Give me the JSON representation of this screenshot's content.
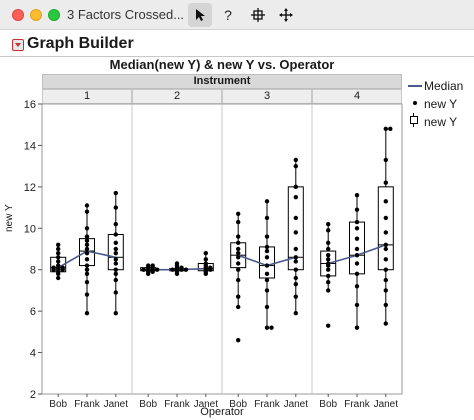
{
  "window": {
    "title": "3 Factors Crossed..."
  },
  "toolbar": {
    "pointer_icon": "pointer-arrow-icon",
    "help_label": "?",
    "crosshair_icon": "crosshair-icon",
    "move_icon": "move-icon"
  },
  "section": {
    "title": "Graph Builder"
  },
  "legend": {
    "median": "Median",
    "points": "new Y",
    "box": "new Y"
  },
  "colors": {
    "median_line": "#4a5a8a",
    "points": "#000000",
    "box": "#000000"
  },
  "chart_data": {
    "type": "box",
    "title": "Median(new Y) & new Y vs. Operator",
    "group_label": "Instrument",
    "xlabel": "Operator",
    "ylabel": "new Y",
    "ylim": [
      2,
      16
    ],
    "yticks": [
      2,
      4,
      6,
      8,
      10,
      12,
      14,
      16
    ],
    "categories": [
      "Bob",
      "Frank",
      "Janet"
    ],
    "panels": [
      {
        "label": "1",
        "boxes": [
          {
            "q1": 7.9,
            "median": 8.1,
            "q3": 8.6,
            "min": 7.6,
            "max": 9.2
          },
          {
            "q1": 8.2,
            "median": 8.9,
            "q3": 9.5,
            "min": 5.9,
            "max": 11.1
          },
          {
            "q1": 8.0,
            "median": 8.6,
            "q3": 9.7,
            "min": 5.9,
            "max": 11.7
          }
        ],
        "points": [
          [
            7.6,
            7.8,
            7.9,
            8.0,
            8.0,
            8.0,
            8.1,
            8.1,
            8.1,
            8.2,
            8.4,
            8.6,
            8.8,
            9.0,
            9.2
          ],
          [
            5.9,
            6.8,
            7.4,
            7.8,
            8.0,
            8.2,
            8.5,
            8.8,
            9.0,
            9.2,
            9.4,
            9.6,
            10.0,
            10.8,
            11.1
          ],
          [
            5.9,
            6.9,
            7.5,
            7.8,
            8.0,
            8.3,
            8.5,
            8.8,
            9.0,
            9.3,
            9.7,
            10.2,
            11.0,
            11.7
          ]
        ]
      },
      {
        "label": "2",
        "boxes": [
          {
            "q1": 7.95,
            "median": 8.0,
            "q3": 8.1,
            "min": 7.8,
            "max": 8.2
          },
          {
            "q1": 7.95,
            "median": 8.0,
            "q3": 8.05,
            "min": 7.8,
            "max": 8.3
          },
          {
            "q1": 7.95,
            "median": 8.05,
            "q3": 8.3,
            "min": 7.8,
            "max": 8.8
          }
        ],
        "points": [
          [
            7.8,
            7.9,
            7.9,
            8.0,
            8.0,
            8.0,
            8.0,
            8.1,
            8.1,
            8.2,
            8.2
          ],
          [
            7.8,
            7.9,
            8.0,
            8.0,
            8.0,
            8.0,
            8.1,
            8.1,
            8.2,
            8.3
          ],
          [
            7.8,
            7.9,
            8.0,
            8.0,
            8.1,
            8.1,
            8.2,
            8.3,
            8.5,
            8.8
          ]
        ]
      },
      {
        "label": "3",
        "boxes": [
          {
            "q1": 8.1,
            "median": 8.7,
            "q3": 9.3,
            "min": 6.2,
            "max": 10.7
          },
          {
            "q1": 7.6,
            "median": 8.2,
            "q3": 9.1,
            "min": 5.2,
            "max": 11.3
          },
          {
            "q1": 8.0,
            "median": 8.6,
            "q3": 12.0,
            "min": 5.9,
            "max": 13.3
          }
        ],
        "points": [
          [
            4.6,
            6.2,
            6.7,
            7.5,
            8.0,
            8.3,
            8.6,
            8.8,
            9.0,
            9.3,
            9.6,
            10.3,
            10.7
          ],
          [
            5.2,
            5.2,
            6.2,
            7.0,
            7.5,
            7.8,
            8.2,
            8.6,
            8.9,
            9.1,
            9.6,
            10.5,
            11.3
          ],
          [
            5.9,
            6.7,
            7.3,
            7.6,
            8.0,
            8.4,
            8.6,
            9.0,
            9.8,
            10.5,
            11.5,
            12.0,
            13.0,
            13.3
          ]
        ]
      },
      {
        "label": "4",
        "boxes": [
          {
            "q1": 7.7,
            "median": 8.3,
            "q3": 8.9,
            "min": 7.0,
            "max": 10.2
          },
          {
            "q1": 7.8,
            "median": 8.7,
            "q3": 10.3,
            "min": 5.2,
            "max": 11.6
          },
          {
            "q1": 8.0,
            "median": 9.2,
            "q3": 12.0,
            "min": 5.4,
            "max": 14.8
          }
        ],
        "points": [
          [
            5.3,
            7.0,
            7.4,
            7.7,
            8.0,
            8.2,
            8.3,
            8.5,
            8.7,
            9.0,
            9.3,
            9.9,
            10.2
          ],
          [
            5.2,
            6.3,
            7.2,
            7.8,
            8.3,
            8.7,
            9.0,
            9.5,
            10.0,
            10.3,
            10.9,
            11.6
          ],
          [
            5.4,
            6.3,
            7.0,
            7.5,
            8.0,
            8.5,
            9.0,
            9.2,
            9.8,
            10.5,
            11.3,
            12.2,
            13.3,
            14.8,
            14.8
          ]
        ]
      }
    ]
  }
}
